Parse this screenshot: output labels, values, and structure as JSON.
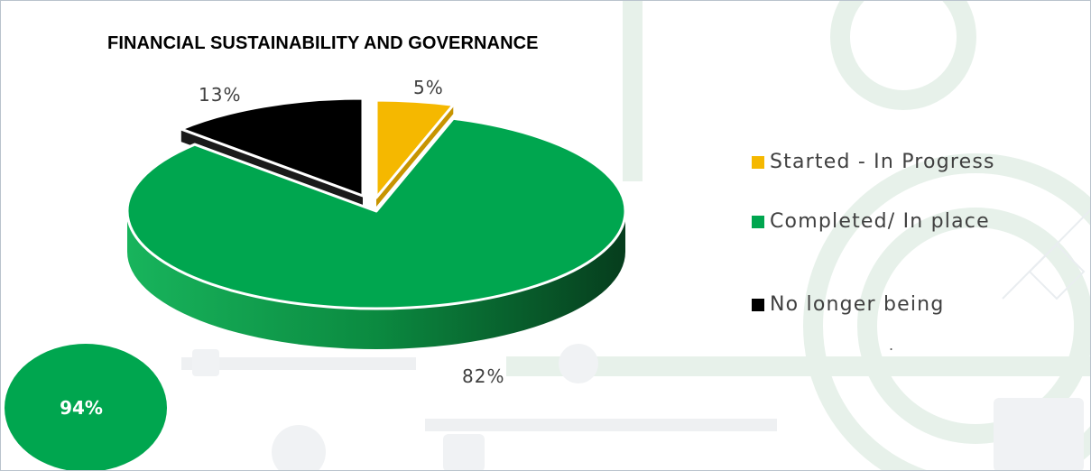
{
  "chart_data": {
    "type": "pie",
    "title": "FINANCIAL SUSTAINABILITY AND GOVERNANCE",
    "categories": [
      "Started - In Progress",
      "Completed/ In place",
      "No longer being"
    ],
    "values": [
      5,
      82,
      13
    ],
    "data_labels": [
      "5%",
      "82%",
      "13%"
    ],
    "colors": [
      "#f5b800",
      "#00a64f",
      "#000000"
    ],
    "exploded": true,
    "three_d": true,
    "legend_position": "right"
  },
  "legend_extra": ".",
  "badge": {
    "value": "94%",
    "color": "#00a64f"
  }
}
